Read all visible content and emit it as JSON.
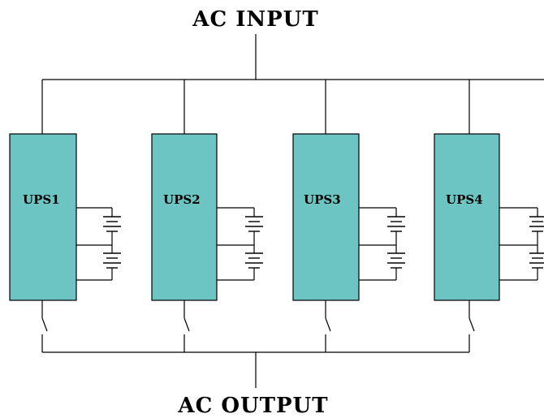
{
  "diagram": {
    "input_label": "AC INPUT",
    "output_label": "AC OUTPUT",
    "units": [
      {
        "name": "UPS1"
      },
      {
        "name": "UPS2"
      },
      {
        "name": "UPS3"
      },
      {
        "name": "UPS4"
      }
    ]
  },
  "colors": {
    "ups_fill": "#6dc5c3",
    "line": "#000000",
    "background": "#ffffff"
  }
}
